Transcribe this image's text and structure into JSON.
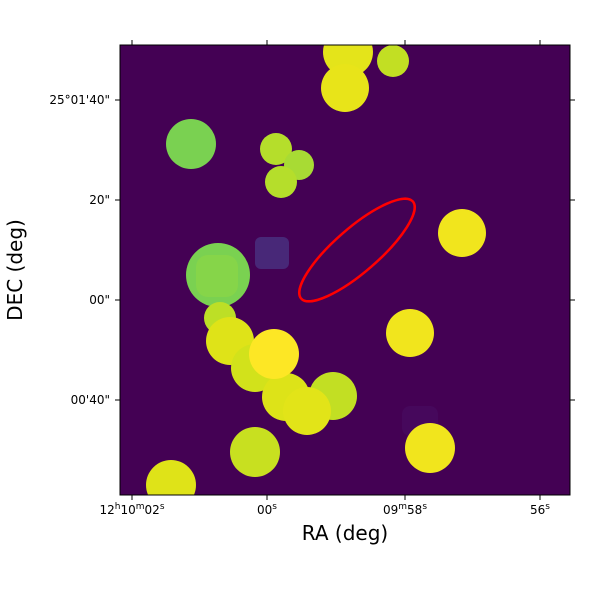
{
  "chart_data": {
    "type": "image",
    "x_label": "RA (deg)",
    "y_label": "DEC (deg)",
    "xtick_labels": [
      "12h10m02s",
      "00s",
      "09m58s",
      "56s"
    ],
    "ytick_labels": [
      "25°01'40\"",
      "20\"",
      "00\"",
      "00'40\""
    ]
  }
}
